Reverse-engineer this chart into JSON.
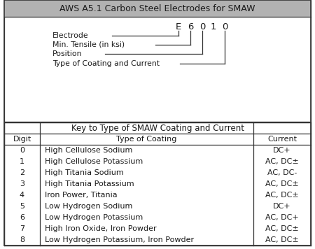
{
  "title": "AWS A5.1 Carbon Steel Electrodes for SMAW",
  "title_bg": "#b2b2b2",
  "code_label": "E  6  0  1  0",
  "labels": [
    "Electrode",
    "Min. Tensile (in ksi)",
    "Position",
    "Type of Coating and Current"
  ],
  "table_title": "Key to Type of SMAW Coating and Current",
  "col_headers": [
    "Digit",
    "Type of Coating",
    "Current"
  ],
  "rows": [
    [
      "0",
      "High Cellulose Sodium",
      "DC+"
    ],
    [
      "1",
      "High Cellulose Potassium",
      "AC, DC±"
    ],
    [
      "2",
      "High Titania Sodium",
      "AC, DC-"
    ],
    [
      "3",
      "High Titania Potassium",
      "AC, DC±"
    ],
    [
      "4",
      "Iron Power, Titania",
      "AC, DC±"
    ],
    [
      "5",
      "Low Hydrogen Sodium",
      "DC+"
    ],
    [
      "6",
      "Low Hydrogen Potassium",
      "AC, DC+"
    ],
    [
      "7",
      "High Iron Oxide, Iron Powder",
      "AC, DC±"
    ],
    [
      "8",
      "Low Hydrogen Potassium, Iron Powder",
      "AC, DC±"
    ]
  ],
  "bg_color": "#ffffff",
  "border_color": "#333333",
  "text_color": "#1a1a1a",
  "outer_border": "#555555",
  "lw": 0.9
}
